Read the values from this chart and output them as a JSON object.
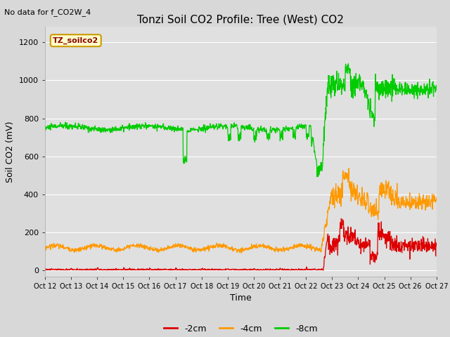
{
  "title": "Tonzi Soil CO2 Profile: Tree (West) CO2",
  "subtitle": "No data for f_CO2W_4",
  "ylabel": "Soil CO2 (mV)",
  "xlabel": "Time",
  "ylim": [
    -30,
    1280
  ],
  "yticks": [
    0,
    200,
    400,
    600,
    800,
    1000,
    1200
  ],
  "xtick_labels": [
    "Oct 12",
    "Oct 13",
    "Oct 14",
    "Oct 15",
    "Oct 16",
    "Oct 17",
    "Oct 18",
    "Oct 19",
    "Oct 20",
    "Oct 21",
    "Oct 22",
    "Oct 23",
    "Oct 24",
    "Oct 25",
    "Oct 26",
    "Oct 27"
  ],
  "legend_label": "TZ_soilco2",
  "legend_box_facecolor": "#ffffcc",
  "legend_box_edgecolor": "#cc9900",
  "legend_text_color": "#8b0000",
  "series_labels": [
    "-2cm",
    "-4cm",
    "-8cm"
  ],
  "series_colors": [
    "#dd0000",
    "#ff9900",
    "#00cc00"
  ],
  "fig_facecolor": "#d8d8d8",
  "plot_bg_color": "#e0e0e0",
  "grid_color": "#ffffff",
  "title_fontsize": 11,
  "axis_fontsize": 9,
  "tick_fontsize": 8
}
